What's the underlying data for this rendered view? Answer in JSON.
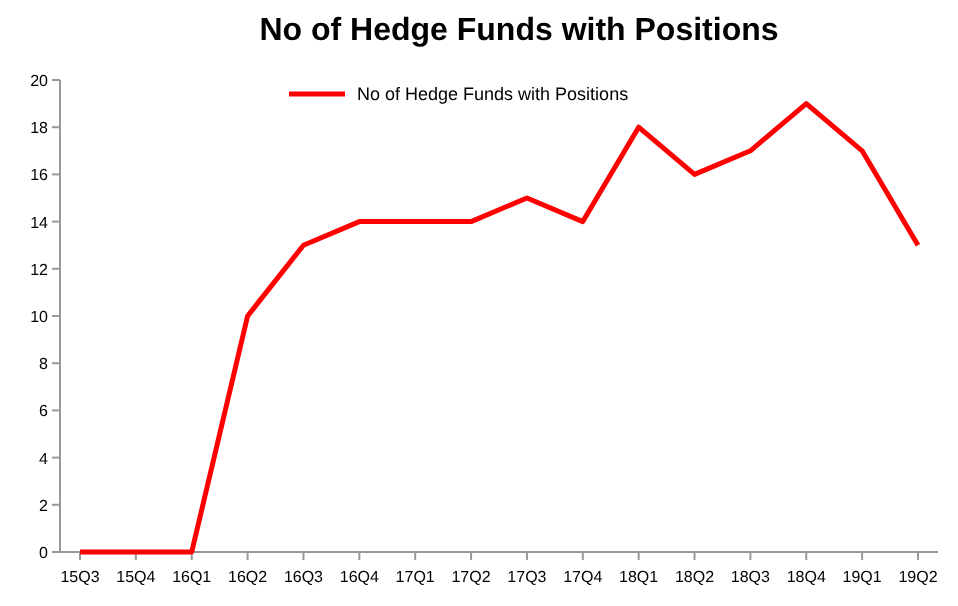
{
  "chart_data": {
    "type": "line",
    "title": "No of Hedge Funds with Positions",
    "categories": [
      "15Q3",
      "15Q4",
      "16Q1",
      "16Q2",
      "16Q3",
      "16Q4",
      "17Q1",
      "17Q2",
      "17Q3",
      "17Q4",
      "18Q1",
      "18Q2",
      "18Q3",
      "18Q4",
      "19Q1",
      "19Q2"
    ],
    "series": [
      {
        "name": "No of Hedge Funds with Positions",
        "color": "#ff0000",
        "values": [
          0,
          0,
          0,
          10,
          13,
          14,
          14,
          14,
          15,
          14,
          18,
          16,
          17,
          19,
          17,
          13
        ]
      }
    ],
    "ylim": [
      0,
      20
    ],
    "yticks": [
      0,
      2,
      4,
      6,
      8,
      10,
      12,
      14,
      16,
      18,
      20
    ],
    "grid": false,
    "legend": "top",
    "marker": "none",
    "line_style": "solid"
  }
}
